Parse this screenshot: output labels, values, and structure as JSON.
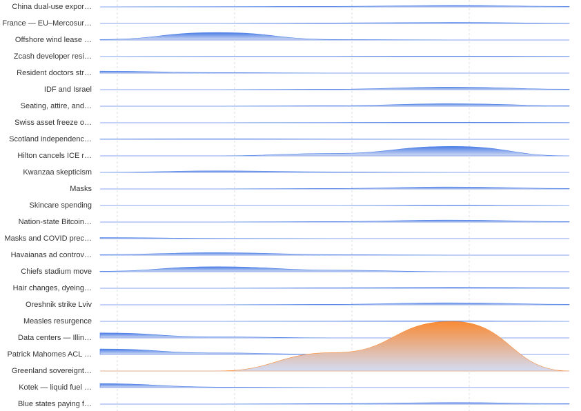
{
  "chart_data": {
    "type": "ridgeline",
    "series": [
      {
        "name": "China dual-use expor…",
        "color": "#4a7de6",
        "values": [
          0,
          0.5,
          1,
          3,
          1
        ]
      },
      {
        "name": "France — EU–Mercosur…",
        "color": "#4a7de6",
        "values": [
          0,
          0,
          1,
          2,
          0.5
        ]
      },
      {
        "name": "Offshore wind lease …",
        "color": "#4a7de6",
        "values": [
          1,
          15,
          1,
          0,
          0
        ]
      },
      {
        "name": "Zcash developer resi…",
        "color": "#4a7de6",
        "values": [
          0,
          0.5,
          0.5,
          1,
          0.5
        ]
      },
      {
        "name": "Resident doctors str…",
        "color": "#4a7de6",
        "values": [
          4,
          1,
          0,
          0,
          0
        ]
      },
      {
        "name": "IDF and Israel",
        "color": "#4a7de6",
        "values": [
          0,
          0,
          1,
          5,
          1
        ]
      },
      {
        "name": "Seating, attire, and…",
        "color": "#4a7de6",
        "values": [
          0,
          0,
          1,
          5,
          1
        ]
      },
      {
        "name": "Swiss asset freeze o…",
        "color": "#4a7de6",
        "values": [
          0,
          0,
          0.5,
          1,
          0.5
        ]
      },
      {
        "name": "Scotland independenc…",
        "color": "#4a7de6",
        "values": [
          0.5,
          1,
          0.5,
          0,
          0
        ]
      },
      {
        "name": "Hilton cancels ICE r…",
        "color": "#4a7de6",
        "values": [
          0,
          0,
          5,
          19,
          0
        ]
      },
      {
        "name": "Kwanzaa skepticism",
        "color": "#4a7de6",
        "values": [
          0,
          3,
          1,
          0,
          0
        ]
      },
      {
        "name": "Masks",
        "color": "#4a7de6",
        "values": [
          0,
          0,
          1,
          4,
          1
        ]
      },
      {
        "name": "Skincare spending",
        "color": "#4a7de6",
        "values": [
          0,
          0,
          0,
          1,
          0
        ]
      },
      {
        "name": "Nation-state Bitcoin…",
        "color": "#4a7de6",
        "values": [
          0,
          0,
          1,
          4,
          1
        ]
      },
      {
        "name": "Masks and COVID prec…",
        "color": "#4a7de6",
        "values": [
          2,
          0.5,
          0,
          0,
          0
        ]
      },
      {
        "name": "Havaianas ad controv…",
        "color": "#4a7de6",
        "values": [
          1,
          5,
          1,
          0,
          0
        ]
      },
      {
        "name": "Chiefs stadium move",
        "color": "#4a7de6",
        "values": [
          1,
          10,
          3,
          0,
          0
        ]
      },
      {
        "name": "Hair changes, dyeing…",
        "color": "#4a7de6",
        "values": [
          0,
          0,
          1,
          2,
          1
        ]
      },
      {
        "name": "Oreshnik strike Lviv",
        "color": "#4a7de6",
        "values": [
          0,
          0,
          1,
          4,
          1
        ]
      },
      {
        "name": "Measles resurgence",
        "color": "#4a7de6",
        "values": [
          0,
          0,
          0.5,
          1,
          0
        ]
      },
      {
        "name": "Data centers — Illin…",
        "color": "#4a7de6",
        "values": [
          10,
          2,
          0,
          0,
          0
        ]
      },
      {
        "name": "Patrick Mahomes ACL …",
        "color": "#4a7de6",
        "values": [
          11,
          3,
          0,
          0,
          0
        ]
      },
      {
        "name": "Greenland sovereignt…",
        "color": "#f98b35",
        "values": [
          0,
          0,
          37,
          100,
          0
        ]
      },
      {
        "name": "Kotek — liquid fuel …",
        "color": "#4a7de6",
        "values": [
          8,
          1,
          0,
          0,
          0
        ]
      },
      {
        "name": "Blue states paying f…",
        "color": "#4a7de6",
        "values": [
          0,
          0,
          1,
          3,
          1
        ]
      }
    ],
    "ylim": [
      0,
      100
    ]
  }
}
